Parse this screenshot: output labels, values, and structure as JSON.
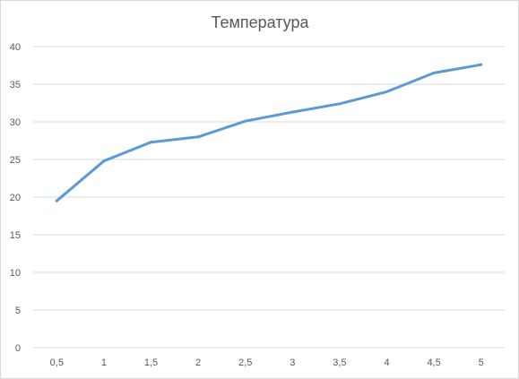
{
  "chart_data": {
    "type": "line",
    "title": "Температура",
    "xlabel": "",
    "ylabel": "",
    "categories": [
      "0,5",
      "1",
      "1,5",
      "2",
      "2,5",
      "3",
      "3,5",
      "4",
      "4,5",
      "5"
    ],
    "series": [
      {
        "values": [
          19.5,
          24.8,
          27.3,
          28.0,
          30.1,
          31.3,
          32.4,
          34.0,
          36.5,
          37.6
        ]
      }
    ],
    "y_ticks": [
      "0",
      "5",
      "10",
      "15",
      "20",
      "25",
      "30",
      "35",
      "40"
    ],
    "ylim": [
      0,
      40
    ],
    "y_step": 5,
    "grid": "horizontal",
    "legend": "none",
    "colors": {
      "series": "#5b9bd5",
      "grid": "#d9d9d9",
      "text": "#595959"
    }
  }
}
